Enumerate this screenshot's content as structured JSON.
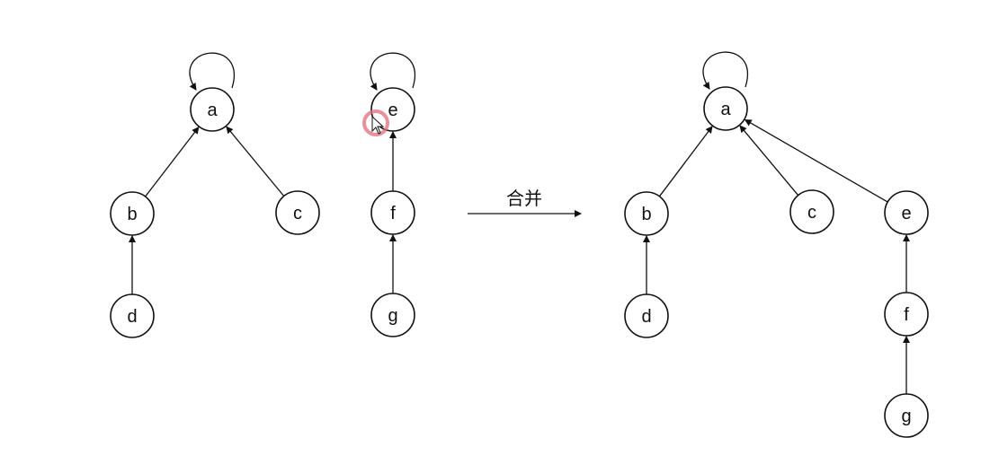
{
  "diagram": {
    "left_tree": {
      "nodes": [
        {
          "id": "a",
          "label": "a"
        },
        {
          "id": "b",
          "label": "b"
        },
        {
          "id": "c",
          "label": "c"
        },
        {
          "id": "d",
          "label": "d"
        }
      ],
      "edges": [
        {
          "from": "b",
          "to": "a"
        },
        {
          "from": "c",
          "to": "a"
        },
        {
          "from": "d",
          "to": "b"
        },
        {
          "from": "a",
          "to": "a"
        }
      ]
    },
    "middle_tree": {
      "nodes": [
        {
          "id": "e",
          "label": "e"
        },
        {
          "id": "f",
          "label": "f"
        },
        {
          "id": "g",
          "label": "g"
        }
      ],
      "edges": [
        {
          "from": "f",
          "to": "e"
        },
        {
          "from": "g",
          "to": "f"
        },
        {
          "from": "e",
          "to": "e"
        }
      ]
    },
    "merge_arrow": {
      "label": "合并"
    },
    "result_tree": {
      "nodes": [
        {
          "id": "a",
          "label": "a"
        },
        {
          "id": "b",
          "label": "b"
        },
        {
          "id": "c",
          "label": "c"
        },
        {
          "id": "e",
          "label": "e"
        },
        {
          "id": "d",
          "label": "d"
        },
        {
          "id": "f",
          "label": "f"
        },
        {
          "id": "g",
          "label": "g"
        }
      ],
      "edges": [
        {
          "from": "b",
          "to": "a"
        },
        {
          "from": "c",
          "to": "a"
        },
        {
          "from": "e",
          "to": "a"
        },
        {
          "from": "d",
          "to": "b"
        },
        {
          "from": "f",
          "to": "e"
        },
        {
          "from": "g",
          "to": "f"
        },
        {
          "from": "a",
          "to": "a"
        }
      ]
    },
    "cursor": {
      "color": "#e46a7a"
    }
  }
}
